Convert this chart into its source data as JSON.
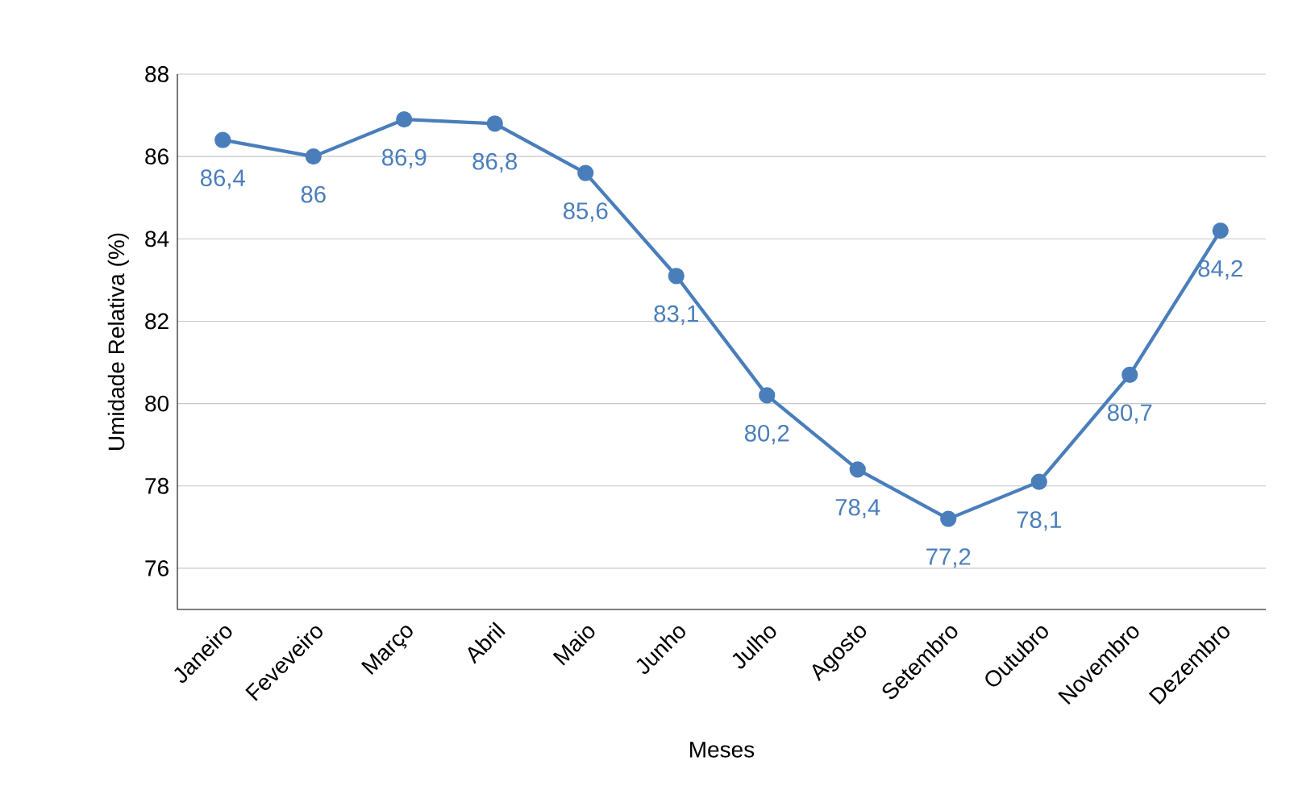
{
  "chart_data": {
    "type": "line",
    "xlabel": "Meses",
    "ylabel": "Umidade Relativa (%)",
    "categories": [
      "Janeiro",
      "Feveveiro",
      "Março",
      "Abril",
      "Maio",
      "Junho",
      "Julho",
      "Agosto",
      "Setembro",
      "Outubro",
      "Novembro",
      "Dezembro"
    ],
    "series": [
      {
        "color": "#4a7ebb",
        "values": [
          86.4,
          86,
          86.9,
          86.8,
          85.6,
          83.1,
          80.2,
          78.4,
          77.2,
          78.1,
          80.7,
          84.2
        ],
        "value_labels": [
          "86,4",
          "86",
          "86,9",
          "86,8",
          "85,6",
          "83,1",
          "80,2",
          "78,4",
          "77,2",
          "78,1",
          "80,7",
          "84,2"
        ]
      }
    ],
    "ylim": [
      75,
      88
    ],
    "yticks": [
      76,
      78,
      80,
      82,
      84,
      86,
      88
    ],
    "grid": "y",
    "marker": "circle",
    "line_style": "solid"
  }
}
